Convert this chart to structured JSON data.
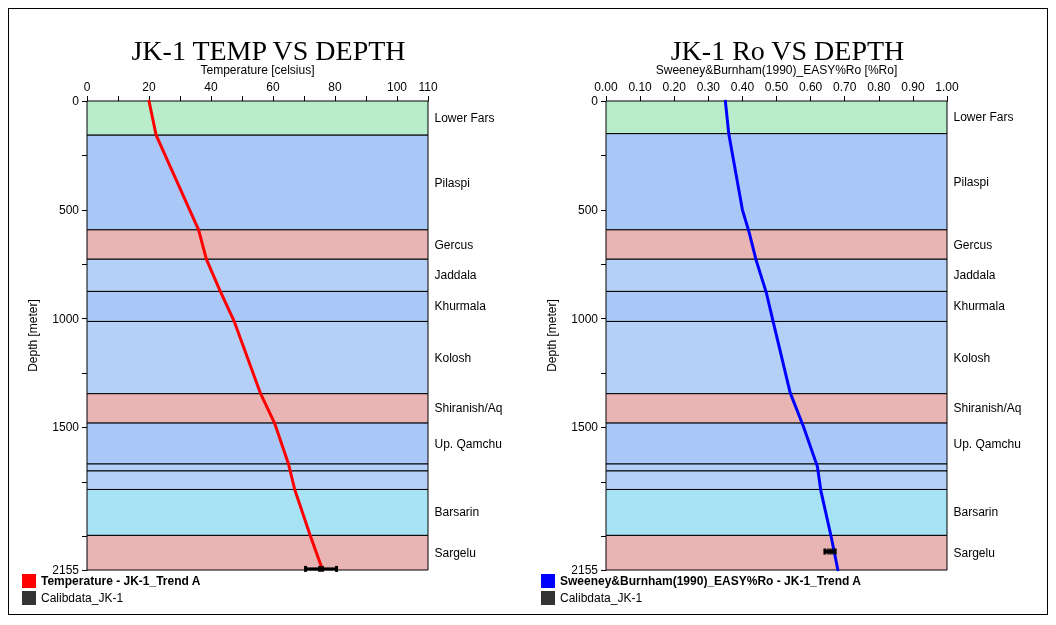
{
  "chart_data": [
    {
      "type": "line",
      "title": "JK-1 TEMP VS DEPTH",
      "xlabel": "Temperature [celsius]",
      "ylabel": "Depth [meter]",
      "xlim": [
        0,
        110
      ],
      "xticks": [
        0,
        {
          "value": 10,
          "label": null
        },
        20,
        {
          "value": 30,
          "label": null
        },
        40,
        {
          "value": 50,
          "label": null
        },
        60,
        {
          "value": 70,
          "label": null
        },
        80,
        {
          "value": 90,
          "label": null
        },
        100,
        110
      ],
      "ylim": [
        2155,
        0
      ],
      "yticks": [
        0,
        {
          "value": 250,
          "label": null
        },
        500,
        {
          "value": 750,
          "label": null
        },
        1000,
        {
          "value": 1250,
          "label": null
        },
        1500,
        {
          "value": 1750,
          "label": null
        },
        {
          "value": 2000,
          "label": null
        },
        2155
      ],
      "grid": false,
      "legend": "bottom left",
      "series": [
        {
          "name": "Temperature - JK-1_Trend A",
          "type": "line",
          "color": "#ff0000",
          "marker": "none",
          "x": [
            20,
            22.3,
            36,
            38.5,
            43,
            47.5,
            56,
            60.5,
            65,
            67,
            72,
            76
          ],
          "values": [
            0,
            157,
            592,
            727,
            875,
            1013,
            1345,
            1480,
            1668,
            1785,
            1996,
            2155
          ]
        },
        {
          "name": "Calibdata_JK-1",
          "type": "scatter",
          "color": "#000000",
          "marker": "square",
          "x": [
            75.5
          ],
          "values": [
            2150
          ],
          "xerrors": [
            5
          ]
        }
      ],
      "bands": [
        {
          "axis": "y",
          "from": 0,
          "to": 157,
          "label": "Lower Fars",
          "color": "#b8eccb"
        },
        {
          "axis": "y",
          "from": 157,
          "to": 592,
          "label": "Pilaspi",
          "color": "#a9c8f7"
        },
        {
          "axis": "y",
          "from": 592,
          "to": 727,
          "label": "Gercus",
          "color": "#e8b4b4"
        },
        {
          "axis": "y",
          "from": 727,
          "to": 875,
          "label": "Jaddala",
          "color": "#b4d0f7"
        },
        {
          "axis": "y",
          "from": 875,
          "to": 1013,
          "label": "Khurmala",
          "color": "#a9c8f7"
        },
        {
          "axis": "y",
          "from": 1013,
          "to": 1345,
          "label": "Kolosh",
          "color": "#b4d0f7"
        },
        {
          "axis": "y",
          "from": 1345,
          "to": 1480,
          "label": "Shiranish/Aq",
          "color": "#e8b4b4"
        },
        {
          "axis": "y",
          "from": 1480,
          "to": 1668,
          "label": "Up. Qamchu",
          "color": "#a9c8f7"
        },
        {
          "axis": "y",
          "from": 1668,
          "to": 1700,
          "label": null,
          "color": "#b4d0f7"
        },
        {
          "axis": "y",
          "from": 1700,
          "to": 1785,
          "label": null,
          "color": "#b4d0f7"
        },
        {
          "axis": "y",
          "from": 1785,
          "to": 1996,
          "label": "Barsarin",
          "color": "#a8e2f5"
        },
        {
          "axis": "y",
          "from": 1996,
          "to": 2155,
          "label": "Sargelu",
          "color": "#e8b4b4"
        }
      ]
    },
    {
      "type": "line",
      "title": "JK-1 Ro VS DEPTH",
      "xlabel": "Sweeney&Burnham(1990)_EASY%Ro [%Ro]",
      "ylabel": "Depth [meter]",
      "xlim": [
        0,
        1
      ],
      "xticks": [
        {
          "value": 0,
          "label": "0.00"
        },
        {
          "value": 0.1,
          "label": "0.10"
        },
        {
          "value": 0.2,
          "label": "0.20"
        },
        {
          "value": 0.3,
          "label": "0.30"
        },
        {
          "value": 0.4,
          "label": "0.40"
        },
        {
          "value": 0.5,
          "label": "0.50"
        },
        {
          "value": 0.6,
          "label": "0.60"
        },
        {
          "value": 0.7,
          "label": "0.70"
        },
        {
          "value": 0.8,
          "label": "0.80"
        },
        {
          "value": 0.9,
          "label": "0.90"
        },
        {
          "value": 1,
          "label": "1.00"
        }
      ],
      "ylim": [
        2155,
        0
      ],
      "yticks": [
        0,
        {
          "value": 250,
          "label": null
        },
        500,
        {
          "value": 750,
          "label": null
        },
        1000,
        {
          "value": 1250,
          "label": null
        },
        1500,
        {
          "value": 1750,
          "label": null
        },
        {
          "value": 2000,
          "label": null
        },
        2155
      ],
      "grid": false,
      "legend": "bottom left",
      "series": [
        {
          "name": "Sweeney&Burnham(1990)_EASY%Ro - JK-1_Trend A",
          "type": "line",
          "color": "#0000ff",
          "marker": "none",
          "x": [
            0.35,
            0.36,
            0.4,
            0.42,
            0.44,
            0.47,
            0.49,
            0.54,
            0.58,
            0.62,
            0.63,
            0.66,
            0.68
          ],
          "values": [
            0,
            150,
            500,
            605,
            730,
            880,
            1013,
            1340,
            1500,
            1680,
            1790,
            2000,
            2155
          ]
        },
        {
          "name": "Calibdata_JK-1",
          "type": "scatter",
          "color": "#000000",
          "marker": "square",
          "x": [
            0.657
          ],
          "values": [
            2070
          ],
          "xerrors": [
            0.015
          ]
        }
      ],
      "bands": [
        {
          "axis": "y",
          "from": 0,
          "to": 150,
          "label": "Lower Fars",
          "color": "#b8eccb"
        },
        {
          "axis": "y",
          "from": 150,
          "to": 592,
          "label": "Pilaspi",
          "color": "#a9c8f7"
        },
        {
          "axis": "y",
          "from": 592,
          "to": 727,
          "label": "Gercus",
          "color": "#e8b4b4"
        },
        {
          "axis": "y",
          "from": 727,
          "to": 875,
          "label": "Jaddala",
          "color": "#b4d0f7"
        },
        {
          "axis": "y",
          "from": 875,
          "to": 1013,
          "label": "Khurmala",
          "color": "#a9c8f7"
        },
        {
          "axis": "y",
          "from": 1013,
          "to": 1345,
          "label": "Kolosh",
          "color": "#b4d0f7"
        },
        {
          "axis": "y",
          "from": 1345,
          "to": 1480,
          "label": "Shiranish/Aq",
          "color": "#e8b4b4"
        },
        {
          "axis": "y",
          "from": 1480,
          "to": 1668,
          "label": "Up. Qamchu",
          "color": "#a9c8f7"
        },
        {
          "axis": "y",
          "from": 1668,
          "to": 1700,
          "label": null,
          "color": "#b4d0f7"
        },
        {
          "axis": "y",
          "from": 1700,
          "to": 1785,
          "label": null,
          "color": "#b4d0f7"
        },
        {
          "axis": "y",
          "from": 1785,
          "to": 1996,
          "label": "Barsarin",
          "color": "#a8e2f5"
        },
        {
          "axis": "y",
          "from": 1996,
          "to": 2155,
          "label": "Sargelu",
          "color": "#e8b4b4"
        }
      ]
    }
  ]
}
